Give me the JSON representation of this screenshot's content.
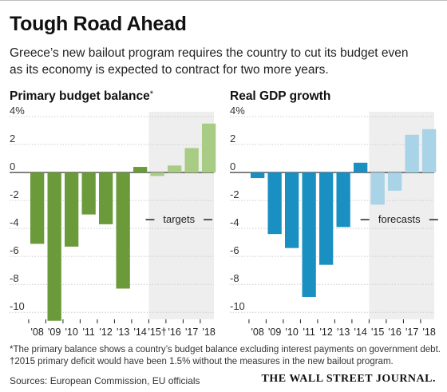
{
  "title": "Tough Road Ahead",
  "subtitle": "Greece’s new bailout program requires the country to cut its budget even as its economy is expected to contract for two more years.",
  "footnotes": [
    "*The primary balance shows a country’s budget balance excluding interest payments on government debt.",
    "†2015 primary deficit would have been 1.5% without the measures in the new bailout program."
  ],
  "sources": "Sources: European Commission, EU officials",
  "publisher": "THE WALL STREET JOURNAL.",
  "chart_data": [
    {
      "type": "bar",
      "title": "Primary budget balance",
      "title_mark": "*",
      "categories": [
        "'08",
        "'09",
        "'10",
        "'11",
        "'12",
        "'13",
        "'14",
        "'15†",
        "'16",
        "'17",
        "'18"
      ],
      "values": [
        -5.1,
        -10.6,
        -5.3,
        -3.0,
        -3.7,
        -8.3,
        0.4,
        -0.25,
        0.5,
        1.75,
        3.5
      ],
      "y_ticks": [
        "4%",
        "2",
        "0",
        "-2",
        "-4",
        "-6",
        "-8",
        "-10"
      ],
      "ylim": [
        -10.5,
        4
      ],
      "annotation": "targets",
      "projection_start_index": 7,
      "colors": {
        "actual": "#6a9a3a",
        "projected": "#a8cc84",
        "shade": "#eeeeee",
        "grid": "#cccccc",
        "axis": "#222222"
      }
    },
    {
      "type": "bar",
      "title": "Real GDP growth",
      "categories": [
        "'08",
        "'09",
        "'10",
        "'11",
        "'12",
        "'13",
        "'14",
        "'15",
        "'16",
        "'17",
        "'18"
      ],
      "values": [
        -0.4,
        -4.4,
        -5.4,
        -8.9,
        -6.6,
        -3.9,
        0.7,
        -2.3,
        -1.3,
        2.7,
        3.1
      ],
      "y_ticks": [
        "4%",
        "2",
        "0",
        "-2",
        "-4",
        "-6",
        "-8",
        "-10"
      ],
      "ylim": [
        -10.5,
        4
      ],
      "annotation": "forecasts",
      "projection_start_index": 7,
      "colors": {
        "actual": "#1a8fc2",
        "projected": "#a9d3e6",
        "shade": "#eeeeee",
        "grid": "#cccccc",
        "axis": "#222222"
      }
    }
  ]
}
